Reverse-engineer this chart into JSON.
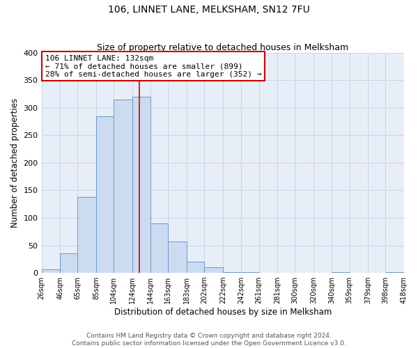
{
  "title": "106, LINNET LANE, MELKSHAM, SN12 7FU",
  "subtitle": "Size of property relative to detached houses in Melksham",
  "xlabel": "Distribution of detached houses by size in Melksham",
  "ylabel": "Number of detached properties",
  "bar_edges": [
    26,
    46,
    65,
    85,
    104,
    124,
    144,
    163,
    183,
    202,
    222,
    242,
    261,
    281,
    300,
    320,
    340,
    359,
    379,
    398,
    418
  ],
  "bar_heights": [
    7,
    35,
    138,
    285,
    315,
    320,
    90,
    57,
    20,
    10,
    1,
    1,
    0,
    0,
    0,
    0,
    1,
    0,
    0,
    1
  ],
  "bar_color": "#ccdcf0",
  "bar_edge_color": "#6699cc",
  "bar_linewidth": 0.7,
  "grid_color": "#c8d4e8",
  "background_color": "#e8eef8",
  "ylim": [
    0,
    400
  ],
  "yticks": [
    0,
    50,
    100,
    150,
    200,
    250,
    300,
    350,
    400
  ],
  "property_line_x": 132,
  "property_line_color": "#cc0000",
  "annotation_title": "106 LINNET LANE: 132sqm",
  "annotation_line1": "← 71% of detached houses are smaller (899)",
  "annotation_line2": "28% of semi-detached houses are larger (352) →",
  "annotation_box_color": "#ffffff",
  "annotation_box_edge": "#cc0000",
  "tick_labels": [
    "26sqm",
    "46sqm",
    "65sqm",
    "85sqm",
    "104sqm",
    "124sqm",
    "144sqm",
    "163sqm",
    "183sqm",
    "202sqm",
    "222sqm",
    "242sqm",
    "261sqm",
    "281sqm",
    "300sqm",
    "320sqm",
    "340sqm",
    "359sqm",
    "379sqm",
    "398sqm",
    "418sqm"
  ],
  "footer_line1": "Contains HM Land Registry data © Crown copyright and database right 2024.",
  "footer_line2": "Contains public sector information licensed under the Open Government Licence v3.0.",
  "title_fontsize": 10,
  "subtitle_fontsize": 9,
  "axis_label_fontsize": 8.5,
  "tick_fontsize": 7,
  "annotation_fontsize": 8,
  "footer_fontsize": 6.5
}
